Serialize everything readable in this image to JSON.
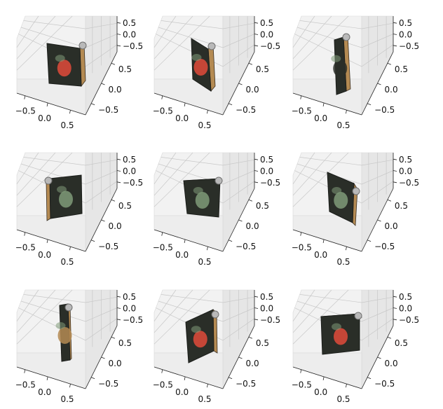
{
  "figure": {
    "layout": "3x3 grid of 3D axes",
    "colors": {
      "pane_left": "#f2f2f2",
      "pane_right": "#e6e6e6",
      "pane_floor": "#ededed",
      "grid": "#c8c8c8",
      "axis_line": "#222222",
      "object_dark": "#2a2e28",
      "object_green": "#7f9a78",
      "object_red": "#e04a3a",
      "object_tan": "#b48a52",
      "object_silver": "#b9b9b9"
    }
  },
  "chart_data": [
    {
      "type": "3d-render",
      "panel": 1,
      "x_ticks": [
        "−0.5",
        "0.0",
        "0.5"
      ],
      "y_ticks": [
        "0.5",
        "0.0",
        "−0.5"
      ],
      "z_ticks": [
        "0.5",
        "0.0",
        "−0.5"
      ],
      "xlim": [
        -0.75,
        0.75
      ],
      "ylim": [
        -0.75,
        0.75
      ],
      "zlim": [
        -0.75,
        0.75
      ],
      "grid": true,
      "object": {
        "view": "front-wide",
        "dominant_color": "red"
      }
    },
    {
      "type": "3d-render",
      "panel": 2,
      "x_ticks": [
        "−0.5",
        "0.0",
        "0.5"
      ],
      "y_ticks": [
        "0.5",
        "0.0",
        "−0.5"
      ],
      "z_ticks": [
        "0.5",
        "0.0",
        "−0.5"
      ],
      "xlim": [
        -0.75,
        0.75
      ],
      "ylim": [
        -0.75,
        0.75
      ],
      "zlim": [
        -0.75,
        0.75
      ],
      "grid": true,
      "object": {
        "view": "three-quarter",
        "dominant_color": "red"
      }
    },
    {
      "type": "3d-render",
      "panel": 3,
      "x_ticks": [
        "−0.5",
        "0.0",
        "0.5"
      ],
      "y_ticks": [
        "0.5",
        "0.0",
        "−0.5"
      ],
      "z_ticks": [
        "0.5",
        "0.0",
        "−0.5"
      ],
      "xlim": [
        -0.75,
        0.75
      ],
      "ylim": [
        -0.75,
        0.75
      ],
      "zlim": [
        -0.75,
        0.75
      ],
      "grid": true,
      "object": {
        "view": "narrow-side",
        "dominant_color": "dark"
      }
    },
    {
      "type": "3d-render",
      "panel": 4,
      "x_ticks": [
        "−0.5",
        "0.0",
        "0.5"
      ],
      "y_ticks": [
        "0.5",
        "0.0",
        "−0.5"
      ],
      "z_ticks": [
        "0.5",
        "0.0",
        "−0.5"
      ],
      "xlim": [
        -0.75,
        0.75
      ],
      "ylim": [
        -0.75,
        0.75
      ],
      "zlim": [
        -0.75,
        0.75
      ],
      "grid": true,
      "object": {
        "view": "back-wide",
        "dominant_color": "green"
      }
    },
    {
      "type": "3d-render",
      "panel": 5,
      "x_ticks": [
        "−0.5",
        "0.0",
        "0.5"
      ],
      "y_ticks": [
        "0.5",
        "0.0",
        "−0.5"
      ],
      "z_ticks": [
        "0.5",
        "0.0",
        "−0.5"
      ],
      "xlim": [
        -0.75,
        0.75
      ],
      "ylim": [
        -0.75,
        0.75
      ],
      "zlim": [
        -0.75,
        0.75
      ],
      "grid": true,
      "object": {
        "view": "back-tilted",
        "dominant_color": "green"
      }
    },
    {
      "type": "3d-render",
      "panel": 6,
      "x_ticks": [
        "−0.5",
        "0.0",
        "0.5"
      ],
      "y_ticks": [
        "0.5",
        "0.0",
        "−0.5"
      ],
      "z_ticks": [
        "0.5",
        "0.0",
        "−0.5"
      ],
      "xlim": [
        -0.75,
        0.75
      ],
      "ylim": [
        -0.75,
        0.75
      ],
      "zlim": [
        -0.75,
        0.75
      ],
      "grid": true,
      "object": {
        "view": "back-three-quarter",
        "dominant_color": "green"
      }
    },
    {
      "type": "3d-render",
      "panel": 7,
      "x_ticks": [
        "−0.5",
        "0.0",
        "0.5"
      ],
      "y_ticks": [
        "0.5",
        "0.0",
        "−0.5"
      ],
      "z_ticks": [
        "0.5",
        "0.0",
        "−0.5"
      ],
      "xlim": [
        -0.75,
        0.75
      ],
      "ylim": [
        -0.75,
        0.75
      ],
      "zlim": [
        -0.75,
        0.75
      ],
      "grid": true,
      "object": {
        "view": "edge-on",
        "dominant_color": "tan"
      }
    },
    {
      "type": "3d-render",
      "panel": 8,
      "x_ticks": [
        "−0.5",
        "0.0",
        "0.5"
      ],
      "y_ticks": [
        "0.5",
        "0.0",
        "−0.5"
      ],
      "z_ticks": [
        "0.5",
        "0.0",
        "−0.5"
      ],
      "xlim": [
        -0.75,
        0.75
      ],
      "ylim": [
        -0.75,
        0.75
      ],
      "zlim": [
        -0.75,
        0.75
      ],
      "grid": true,
      "object": {
        "view": "front-tilted",
        "dominant_color": "red"
      }
    },
    {
      "type": "3d-render",
      "panel": 9,
      "x_ticks": [
        "−0.5",
        "0.0",
        "0.5"
      ],
      "y_ticks": [
        "0.5",
        "0.0",
        "−0.5"
      ],
      "z_ticks": [
        "0.5",
        "0.0",
        "−0.5"
      ],
      "xlim": [
        -0.75,
        0.75
      ],
      "ylim": [
        -0.75,
        0.75
      ],
      "zlim": [
        -0.75,
        0.75
      ],
      "grid": true,
      "object": {
        "view": "front-wide-flat",
        "dominant_color": "red"
      }
    }
  ]
}
